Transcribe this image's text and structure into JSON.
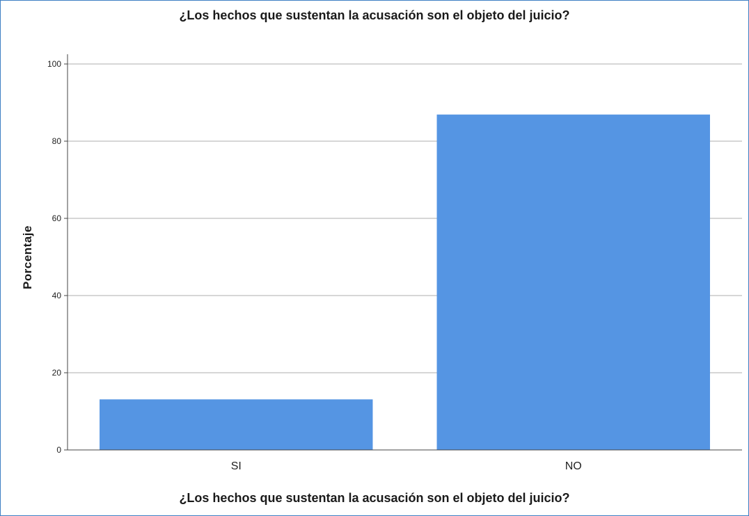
{
  "chart_data": {
    "type": "bar",
    "title": "¿Los hechos que sustentan la acusación son el objeto del juicio?",
    "xlabel": "¿Los hechos que sustentan la acusación son el objeto del juicio?",
    "ylabel": "Porcentaje",
    "categories": [
      "SI",
      "NO"
    ],
    "values": [
      13.1,
      86.9
    ],
    "ylim": [
      0,
      100
    ],
    "yticks": [
      "0",
      "20",
      "40",
      "60",
      "80",
      "100"
    ],
    "grid": true,
    "bar_color": "#5595e3",
    "grid_color": "#c8c8c8"
  }
}
